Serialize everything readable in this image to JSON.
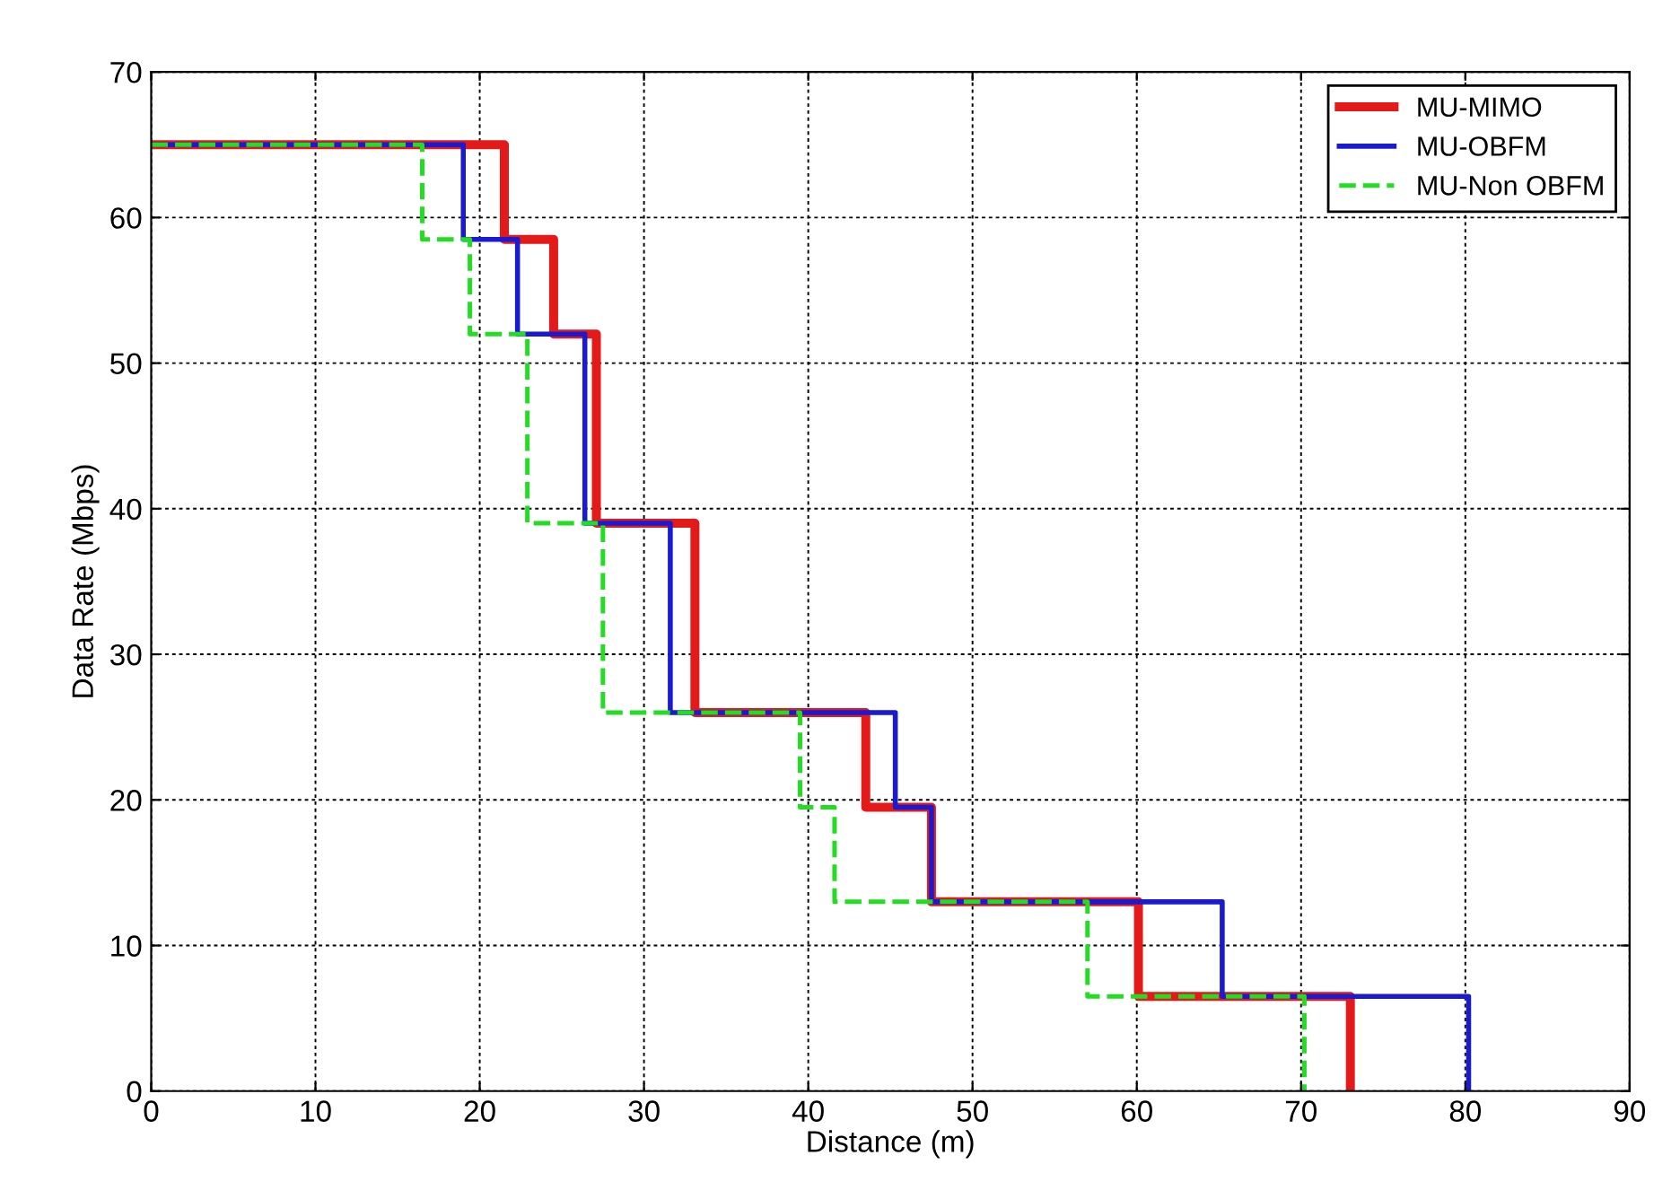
{
  "chart_data": {
    "type": "step",
    "xlabel": "Distance (m)",
    "ylabel": "Data Rate (Mbps)",
    "xlim": [
      0,
      90
    ],
    "ylim": [
      0,
      70
    ],
    "xticks": [
      0,
      10,
      20,
      30,
      40,
      50,
      60,
      70,
      80,
      90
    ],
    "yticks": [
      0,
      10,
      20,
      30,
      40,
      50,
      60,
      70
    ],
    "grid": true,
    "legend": "top right",
    "series": [
      {
        "name": "MU-MIMO",
        "color": "#e41a1a",
        "line_style": "solid",
        "x": [
          0,
          21.5,
          24.5,
          27.1,
          33.1,
          43.5,
          47.5,
          60.1,
          73
        ],
        "values": [
          65,
          58.5,
          52,
          39,
          26,
          19.5,
          13,
          6.5,
          0
        ]
      },
      {
        "name": "MU-OBFM",
        "color": "#1a1ad0",
        "line_style": "solid",
        "x": [
          0,
          19,
          22.3,
          26.4,
          31.6,
          45.3,
          47.5,
          65.2,
          80.2
        ],
        "values": [
          65,
          58.5,
          52,
          39,
          26,
          19.5,
          13,
          6.5,
          0
        ]
      },
      {
        "name": "MU-Non OBFM",
        "color": "#22dd22",
        "line_style": "dashed",
        "x": [
          0,
          16.5,
          19.4,
          22.9,
          27.5,
          39.5,
          41.6,
          57,
          70.2
        ],
        "values": [
          65,
          58.5,
          52,
          39,
          26,
          19.5,
          13,
          6.5,
          0
        ]
      }
    ]
  }
}
